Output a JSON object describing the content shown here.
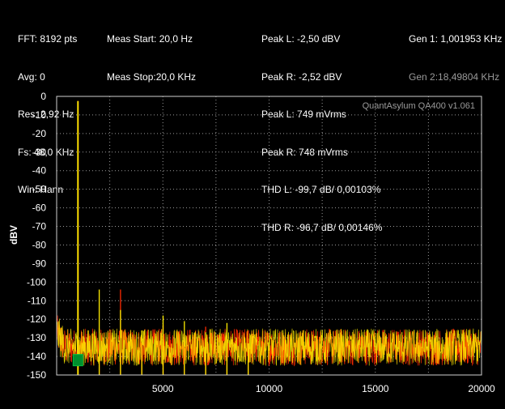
{
  "header": {
    "fft_params": [
      "FFT: 8192 pts",
      "Avg: 0",
      "Res: 2,92 Hz",
      "Fs: 48,0 KHz",
      "Win: Hann"
    ],
    "meas": [
      "Meas Start: 20,0 Hz",
      "Meas Stop:20,0 KHz"
    ],
    "peaks": [
      "Peak L: -2,50 dBV",
      "Peak R: -2,52 dBV",
      "Peak L: 749 mVrms",
      "Peak R: 748 mVrms",
      "THD L: -99,7 dB/ 0,00103%",
      "THD R: -96,7 dB/ 0,00146%"
    ],
    "gen1": "Gen 1: 1,001953 KHz",
    "gen2": "Gen 2:18,49804 KHz"
  },
  "watermark": "QuantAsylum QA400 v1.061",
  "colors": {
    "background": "#000000",
    "grid_dots": "#9a9a9a",
    "left_channel": "#ff2a00",
    "right_channel": "#ffee00",
    "header_text": "#ffffff",
    "gen2_text": "#9a9a9a",
    "watermark": "#9a9a9a",
    "marker": "#008f2e"
  },
  "marker_icon": "green-square-marker",
  "chart_data": {
    "type": "line",
    "xlabel": "",
    "ylabel": "dBV",
    "xlim": [
      0,
      20000
    ],
    "ylim": [
      -150,
      0
    ],
    "x_ticks": [
      5000,
      10000,
      15000,
      20000
    ],
    "y_ticks": [
      0,
      -10,
      -20,
      -30,
      -40,
      -50,
      -60,
      -70,
      -80,
      -90,
      -100,
      -110,
      -120,
      -130,
      -140,
      -150
    ],
    "grid": true,
    "noise_floor_dbv": [
      -145,
      -125
    ],
    "series": [
      {
        "name": "Peak L",
        "color": "#ff2a00",
        "peaks": [
          {
            "x": 1002,
            "y": -2.5
          },
          {
            "x": 2004,
            "y": -125
          },
          {
            "x": 3006,
            "y": -104
          },
          {
            "x": 4008,
            "y": -131
          },
          {
            "x": 5010,
            "y": -123
          },
          {
            "x": 6012,
            "y": -129
          },
          {
            "x": 7014,
            "y": -124
          },
          {
            "x": 8016,
            "y": -131
          },
          {
            "x": 9018,
            "y": -126
          }
        ]
      },
      {
        "name": "Peak R",
        "color": "#ffee00",
        "peaks": [
          {
            "x": 1002,
            "y": -2.52
          },
          {
            "x": 2004,
            "y": -104
          },
          {
            "x": 3006,
            "y": -115
          },
          {
            "x": 4008,
            "y": -126
          },
          {
            "x": 5010,
            "y": -118
          },
          {
            "x": 6012,
            "y": -121
          },
          {
            "x": 7014,
            "y": -127
          },
          {
            "x": 8016,
            "y": -122
          },
          {
            "x": 9018,
            "y": -133
          }
        ]
      }
    ],
    "marker": {
      "x": 1002,
      "y": -142
    }
  }
}
